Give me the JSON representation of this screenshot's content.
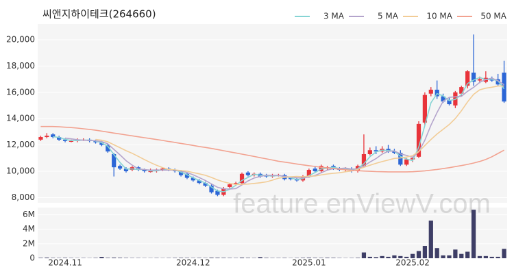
{
  "watermark": "feature.enViewV.com",
  "chart_data": [
    {
      "type": "candlestick",
      "title": "씨앤지하이테크(264660)",
      "categories": [
        null,
        null,
        null,
        null,
        "2024.11",
        null,
        null,
        null,
        null,
        null,
        null,
        null,
        null,
        null,
        null,
        null,
        null,
        null,
        null,
        null,
        null,
        null,
        null,
        null,
        null,
        "2024.12",
        null,
        null,
        null,
        null,
        null,
        null,
        null,
        null,
        null,
        null,
        null,
        null,
        null,
        null,
        null,
        null,
        null,
        null,
        "2025.01",
        null,
        null,
        null,
        null,
        null,
        null,
        null,
        null,
        null,
        null,
        null,
        null,
        null,
        null,
        null,
        null,
        "2025.02",
        null,
        null,
        null,
        null,
        null,
        null,
        null,
        null,
        null,
        null,
        null,
        null,
        null,
        null,
        null
      ],
      "open": [
        12400,
        12600,
        12800,
        12600,
        12400,
        12300,
        12300,
        12400,
        12400,
        12300,
        12200,
        12000,
        11300,
        10400,
        10200,
        10100,
        10300,
        10100,
        10000,
        10000,
        10100,
        10200,
        10100,
        10000,
        9800,
        9500,
        9300,
        9100,
        8900,
        8500,
        8200,
        8800,
        9000,
        9100,
        9900,
        9700,
        9800,
        9700,
        9600,
        9700,
        9700,
        9500,
        9400,
        9300,
        9600,
        10200,
        10000,
        10200,
        10400,
        10200,
        10100,
        10200,
        10000,
        10400,
        11300,
        11600,
        11500,
        11700,
        11500,
        11400,
        10500,
        10900,
        11100,
        13700,
        15900,
        16200,
        15700,
        15400,
        15000,
        15900,
        16500,
        17500,
        16900,
        16800,
        17000,
        17000,
        17500
      ],
      "high": [
        12700,
        12900,
        12900,
        12700,
        12500,
        12400,
        12500,
        12500,
        12500,
        12400,
        12300,
        12100,
        11400,
        10500,
        10300,
        10400,
        10400,
        10200,
        10200,
        10200,
        10300,
        10300,
        10200,
        10100,
        9900,
        9600,
        9400,
        9200,
        9000,
        8600,
        8800,
        9100,
        9200,
        9900,
        10000,
        9900,
        9900,
        9800,
        9800,
        9800,
        9800,
        9600,
        9500,
        9700,
        10200,
        10400,
        10500,
        10400,
        10500,
        10300,
        10300,
        10300,
        10500,
        12800,
        11800,
        11900,
        11900,
        12000,
        11700,
        11600,
        11000,
        11100,
        13800,
        16000,
        16400,
        16900,
        15900,
        15600,
        16100,
        16500,
        17700,
        20400,
        17200,
        17600,
        17200,
        17400,
        18400
      ],
      "low": [
        12300,
        12500,
        12500,
        12300,
        12200,
        12200,
        12200,
        12300,
        12200,
        12100,
        11900,
        11400,
        9600,
        10100,
        9900,
        10000,
        10000,
        9900,
        9900,
        9900,
        10000,
        10000,
        9900,
        9600,
        9400,
        9200,
        9000,
        8800,
        8300,
        8100,
        8100,
        8700,
        8900,
        9000,
        9600,
        9600,
        9500,
        9500,
        9500,
        9600,
        9300,
        9300,
        9200,
        9200,
        9500,
        9900,
        9900,
        10100,
        10100,
        10000,
        10000,
        9900,
        9900,
        10300,
        11200,
        11300,
        11400,
        11400,
        11300,
        10400,
        10400,
        10700,
        11000,
        13500,
        15700,
        15500,
        15200,
        15000,
        14800,
        15700,
        16300,
        16500,
        16700,
        16700,
        16800,
        16500,
        15200
      ],
      "close": [
        12600,
        12700,
        12600,
        12400,
        12300,
        12300,
        12400,
        12400,
        12300,
        12200,
        12000,
        11500,
        10300,
        10200,
        10000,
        10300,
        10100,
        10000,
        10000,
        10100,
        10200,
        10100,
        10000,
        9700,
        9500,
        9300,
        9100,
        8900,
        8400,
        8200,
        8700,
        9000,
        9100,
        9800,
        9700,
        9800,
        9600,
        9600,
        9700,
        9700,
        9400,
        9400,
        9300,
        9600,
        10100,
        10000,
        10400,
        10300,
        10200,
        10100,
        10200,
        10000,
        10400,
        11300,
        11600,
        11500,
        11700,
        11500,
        11400,
        10500,
        10900,
        11000,
        13600,
        15800,
        16200,
        15700,
        15300,
        15100,
        16000,
        16400,
        17600,
        16800,
        17000,
        17100,
        16900,
        16600,
        15300
      ],
      "up_color": "#e8333a",
      "down_color": "#2c66d6",
      "series": [
        {
          "name": "3 MA",
          "color": "#86d4d4",
          "values": [
            null,
            null,
            12630,
            12570,
            12430,
            12330,
            12330,
            12370,
            12370,
            12300,
            12170,
            11900,
            11270,
            10670,
            10170,
            10170,
            10130,
            10130,
            10030,
            10030,
            10100,
            10130,
            10100,
            9930,
            9730,
            9500,
            9300,
            9100,
            8800,
            8500,
            8430,
            8630,
            8930,
            9300,
            9530,
            9770,
            9700,
            9670,
            9630,
            9670,
            9600,
            9500,
            9370,
            9430,
            9670,
            9900,
            10170,
            10230,
            10300,
            10200,
            10170,
            10100,
            10200,
            10570,
            11100,
            11470,
            11600,
            11570,
            11530,
            11130,
            10930,
            10800,
            11830,
            13470,
            15200,
            15900,
            15730,
            15370,
            15470,
            15830,
            16670,
            16930,
            17130,
            16970,
            17000,
            16870,
            16270
          ]
        },
        {
          "name": "5 MA",
          "color": "#b4a4cc",
          "values": [
            null,
            null,
            null,
            null,
            12520,
            12460,
            12400,
            12360,
            12340,
            12320,
            12260,
            12080,
            11660,
            11240,
            10800,
            10460,
            10180,
            10120,
            10080,
            10100,
            10080,
            10080,
            10080,
            10020,
            9900,
            9720,
            9520,
            9300,
            9040,
            8780,
            8660,
            8640,
            8680,
            8960,
            9260,
            9480,
            9600,
            9700,
            9680,
            9680,
            9600,
            9560,
            9500,
            9480,
            9560,
            9680,
            9880,
            10080,
            10200,
            10200,
            10240,
            10160,
            10180,
            10400,
            10700,
            10960,
            11300,
            11520,
            11540,
            11320,
            11200,
            11060,
            11480,
            12360,
            13500,
            14460,
            15320,
            15620,
            15660,
            15700,
            16080,
            16380,
            16760,
            16980,
            17080,
            16880,
            16580
          ]
        },
        {
          "name": "10 MA",
          "color": "#f2cc96",
          "values": [
            null,
            null,
            null,
            null,
            null,
            null,
            null,
            null,
            null,
            12420,
            12360,
            12240,
            12010,
            11790,
            11560,
            11360,
            11130,
            10890,
            10660,
            10450,
            10270,
            10130,
            10100,
            10050,
            10000,
            9900,
            9800,
            9690,
            9530,
            9340,
            9190,
            9080,
            8990,
            9000,
            9020,
            9070,
            9120,
            9190,
            9320,
            9470,
            9540,
            9580,
            9600,
            9580,
            9620,
            9640,
            9720,
            9790,
            9840,
            9880,
            9960,
            10020,
            10130,
            10300,
            10450,
            10600,
            10730,
            10850,
            10970,
            11010,
            11080,
            11180,
            11500,
            11950,
            12410,
            12830,
            13190,
            13550,
            14010,
            14600,
            15270,
            15850,
            16190,
            16320,
            16390,
            16480,
            16480
          ]
        },
        {
          "name": "50 MA",
          "color": "#f2a290",
          "values": [
            13400,
            13400,
            13400,
            13380,
            13350,
            13320,
            13280,
            13230,
            13180,
            13120,
            13050,
            12980,
            12900,
            12830,
            12760,
            12690,
            12620,
            12550,
            12480,
            12410,
            12340,
            12260,
            12190,
            12110,
            12040,
            11960,
            11880,
            11810,
            11730,
            11650,
            11560,
            11470,
            11390,
            11300,
            11210,
            11120,
            11030,
            10940,
            10850,
            10760,
            10690,
            10620,
            10550,
            10480,
            10420,
            10360,
            10300,
            10250,
            10200,
            10150,
            10110,
            10070,
            10040,
            10010,
            9990,
            9970,
            9960,
            9950,
            9950,
            9950,
            9950,
            9960,
            9990,
            10030,
            10080,
            10130,
            10200,
            10270,
            10350,
            10430,
            10520,
            10620,
            10740,
            10900,
            11100,
            11350,
            11600
          ]
        }
      ],
      "legend": "top-right",
      "ylim": [
        7600,
        21200
      ],
      "yticks": [
        {
          "value": 8000,
          "label": "8,000"
        },
        {
          "value": 10000,
          "label": "10,000"
        },
        {
          "value": 12000,
          "label": "12,000"
        },
        {
          "value": 14000,
          "label": "14,000"
        },
        {
          "value": 16000,
          "label": "16,000"
        },
        {
          "value": 18000,
          "label": "18,000"
        },
        {
          "value": 20000,
          "label": "20,000"
        }
      ],
      "grid": true
    },
    {
      "type": "bar",
      "color": "#3e3e66",
      "values": [
        60000,
        90000,
        50000,
        40000,
        60000,
        40000,
        30000,
        40000,
        30000,
        50000,
        180000,
        60000,
        90000,
        70000,
        50000,
        40000,
        40000,
        30000,
        30000,
        40000,
        30000,
        40000,
        50000,
        60000,
        50000,
        40000,
        50000,
        40000,
        80000,
        70000,
        60000,
        50000,
        40000,
        90000,
        60000,
        40000,
        150000,
        60000,
        40000,
        40000,
        50000,
        30000,
        40000,
        60000,
        80000,
        60000,
        50000,
        70000,
        60000,
        40000,
        30000,
        40000,
        60000,
        800000,
        200000,
        150000,
        300000,
        200000,
        400000,
        300000,
        200000,
        600000,
        1000000,
        1700000,
        5200000,
        1400000,
        400000,
        400000,
        1200000,
        600000,
        900000,
        6700000,
        300000,
        300000,
        200000,
        200000,
        1300000
      ],
      "ylim": [
        0,
        7000000
      ],
      "yticks": [
        0,
        {
          "value": 2000000,
          "label": "2M"
        },
        {
          "value": 4000000,
          "label": "4M"
        },
        {
          "value": 6000000,
          "label": "6M"
        }
      ],
      "grid": true
    }
  ]
}
